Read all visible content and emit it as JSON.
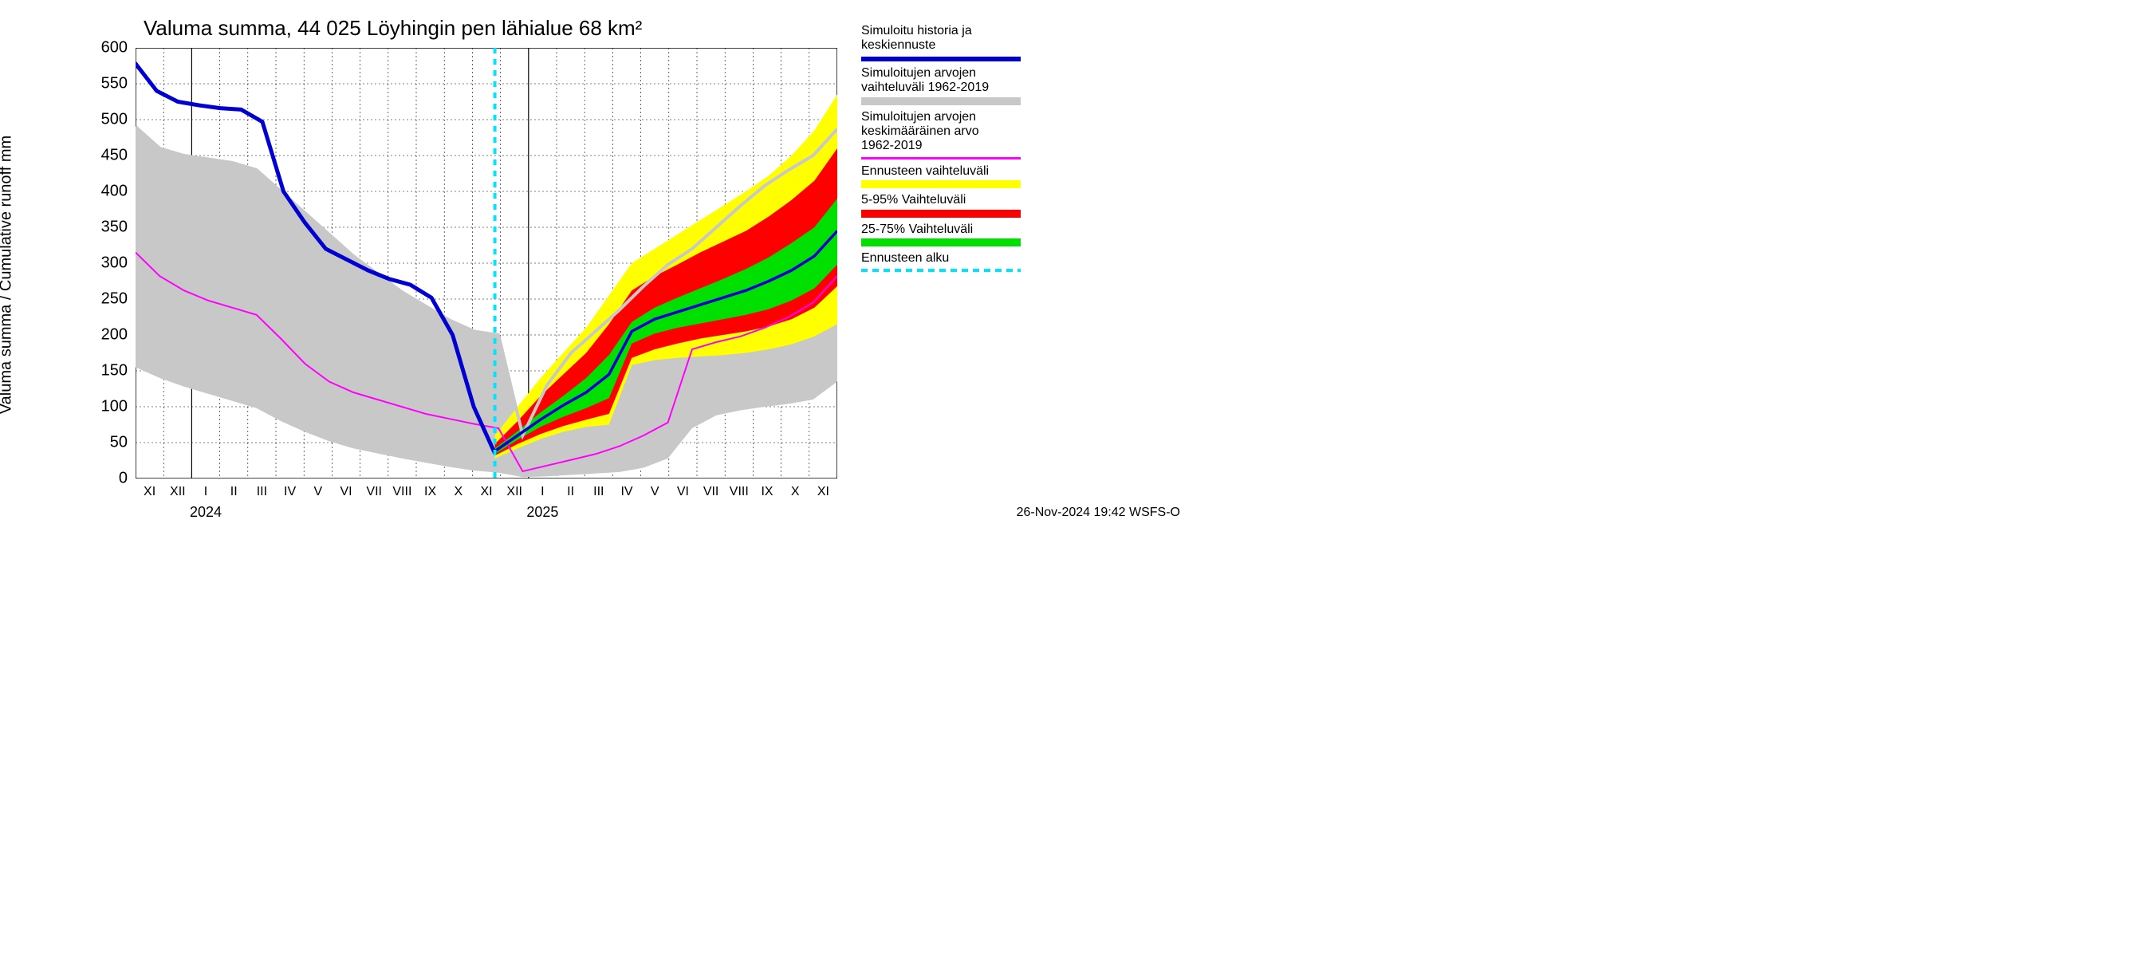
{
  "chart": {
    "type": "line-area-forecast",
    "title": "Valuma summa, 44 025 Löyhingin pen lähialue 68 km²",
    "y_axis_label": "Valuma summa / Cumulative runoff    mm",
    "footer": "26-Nov-2024 19:42 WSFS-O",
    "background_color": "#ffffff",
    "grid_color": "#000000",
    "minor_grid_color": "#000000",
    "ylim": [
      0,
      600
    ],
    "ytick_step": 50,
    "yticks": [
      0,
      50,
      100,
      150,
      200,
      250,
      300,
      350,
      400,
      450,
      500,
      550,
      600
    ],
    "x_months": [
      "XI",
      "XII",
      "I",
      "II",
      "III",
      "IV",
      "V",
      "VI",
      "VII",
      "VIII",
      "IX",
      "X",
      "XI",
      "XII",
      "I",
      "II",
      "III",
      "IV",
      "V",
      "VI",
      "VII",
      "VIII",
      "IX",
      "X",
      "XI"
    ],
    "x_month_count": 25,
    "x_year_labels": [
      {
        "label": "2024",
        "month_index": 2.5
      },
      {
        "label": "2025",
        "month_index": 14.5
      }
    ],
    "forecast_start_month_index": 12.8,
    "colors": {
      "history_line": "#0000d0",
      "historical_range": "#c8c8c8",
      "historical_mean": "#ff00ff",
      "forecast_full": "#ffff00",
      "forecast_5_95": "#ff0000",
      "forecast_25_75": "#00e000",
      "forecast_start_line": "#00e5ff"
    },
    "line_widths": {
      "history": 5,
      "mean": 2,
      "forecast_start": 4
    },
    "historical_range": {
      "upper": [
        490,
        460,
        450,
        445,
        440,
        430,
        400,
        370,
        340,
        310,
        285,
        260,
        240,
        220,
        205,
        200,
        60,
        130,
        175,
        205,
        235,
        268,
        298,
        320,
        350,
        380,
        408,
        430,
        450,
        487
      ],
      "lower": [
        155,
        140,
        128,
        118,
        108,
        98,
        80,
        65,
        52,
        42,
        35,
        28,
        22,
        16,
        11,
        8,
        2,
        3,
        5,
        7,
        9,
        15,
        28,
        70,
        88,
        95,
        100,
        104,
        110,
        135
      ]
    },
    "historical_mean_line": [
      315,
      282,
      262,
      248,
      238,
      228,
      195,
      160,
      135,
      120,
      110,
      100,
      90,
      83,
      76,
      70,
      10,
      18,
      26,
      34,
      45,
      60,
      78,
      180,
      190,
      198,
      210,
      225,
      245,
      282
    ],
    "history_line": [
      578,
      540,
      525,
      520,
      516,
      514,
      497,
      400,
      357,
      320,
      305,
      290,
      278,
      270,
      252,
      200,
      100,
      35
    ],
    "forecast_full": {
      "upper": [
        60,
        100,
        140,
        175,
        210,
        255,
        300,
        320,
        340,
        360,
        380,
        400,
        422,
        450,
        485,
        535
      ],
      "lower": [
        28,
        42,
        55,
        65,
        72,
        75,
        158,
        165,
        168,
        170,
        172,
        175,
        180,
        187,
        198,
        215
      ]
    },
    "forecast_5_95": {
      "upper": [
        48,
        80,
        115,
        145,
        175,
        215,
        262,
        282,
        298,
        315,
        330,
        345,
        365,
        388,
        415,
        460
      ],
      "lower": [
        32,
        48,
        62,
        73,
        82,
        90,
        168,
        180,
        188,
        195,
        200,
        205,
        212,
        222,
        238,
        268
      ]
    },
    "forecast_25_75": {
      "upper": [
        42,
        66,
        92,
        115,
        140,
        172,
        218,
        238,
        252,
        265,
        278,
        292,
        308,
        328,
        350,
        390
      ],
      "lower": [
        34,
        54,
        72,
        86,
        98,
        112,
        188,
        202,
        210,
        216,
        222,
        228,
        236,
        248,
        265,
        298
      ]
    },
    "forecast_median": [
      38,
      60,
      82,
      102,
      120,
      145,
      205,
      222,
      232,
      242,
      252,
      262,
      275,
      290,
      310,
      345
    ]
  },
  "legend": {
    "items": [
      {
        "text1": "Simuloitu historia ja",
        "text2": "keskiennuste",
        "type": "line",
        "color": "#0000d0",
        "thick": 6
      },
      {
        "text1": "Simuloitujen arvojen",
        "text2": "vaihteluväli 1962-2019",
        "type": "block",
        "color": "#c8c8c8"
      },
      {
        "text1": "Simuloitujen arvojen",
        "text2": "keskimääräinen arvo",
        "text3": " 1962-2019",
        "type": "line",
        "color": "#ff00ff",
        "thick": 3
      },
      {
        "text1": "Ennusteen vaihteluväli",
        "type": "block",
        "color": "#ffff00"
      },
      {
        "text1": "5-95% Vaihteluväli",
        "type": "block",
        "color": "#ff0000"
      },
      {
        "text1": "25-75% Vaihteluväli",
        "type": "block",
        "color": "#00e000"
      },
      {
        "text1": "Ennusteen alku",
        "type": "dash",
        "color": "#00e5ff"
      }
    ]
  }
}
